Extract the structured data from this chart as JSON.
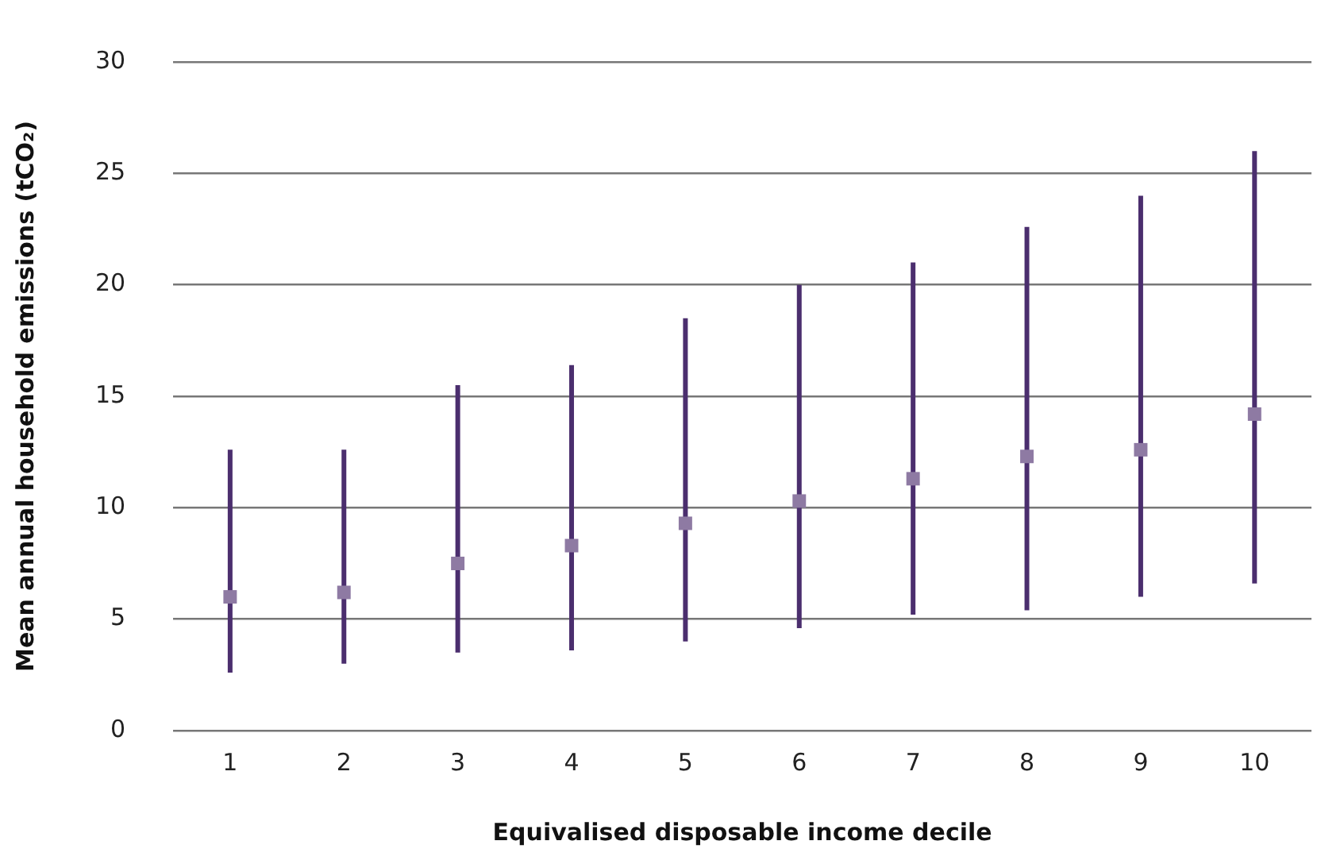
{
  "chart_data": {
    "type": "scatter",
    "xlabel": "Equivalised disposable income decile",
    "ylabel": "Mean annual household emissions (tCO₂)",
    "categories": [
      "1",
      "2",
      "3",
      "4",
      "5",
      "6",
      "7",
      "8",
      "9",
      "10"
    ],
    "values": [
      6.0,
      6.2,
      7.5,
      8.3,
      9.3,
      10.3,
      11.3,
      12.3,
      12.6,
      14.2
    ],
    "errors": [
      [
        2.6,
        12.6
      ],
      [
        3.0,
        12.6
      ],
      [
        3.5,
        15.5
      ],
      [
        3.6,
        16.4
      ],
      [
        4.0,
        18.5
      ],
      [
        4.6,
        20.0
      ],
      [
        5.2,
        21.0
      ],
      [
        5.4,
        22.6
      ],
      [
        6.0,
        24.0
      ],
      [
        6.6,
        26.0
      ]
    ],
    "color": "#8e7aa3",
    "marker": "square",
    "ylim": [
      0,
      30
    ],
    "yticks": [
      0,
      5,
      10,
      15,
      20,
      25,
      30
    ],
    "grid": "y",
    "legend": false
  }
}
